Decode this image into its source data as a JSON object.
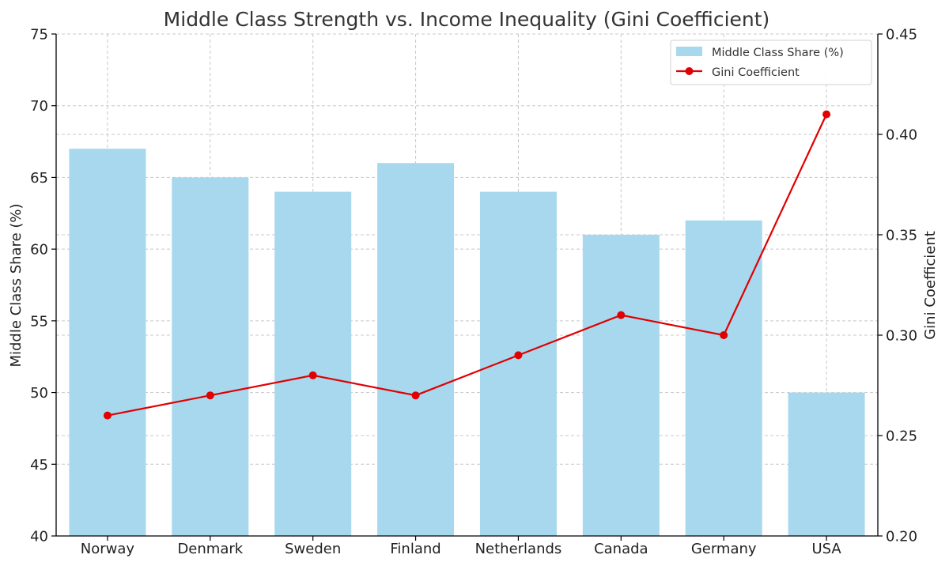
{
  "chart_data": {
    "type": "bar",
    "title": "Middle Class Strength vs. Income Inequality (Gini Coefficient)",
    "categories": [
      "Norway",
      "Denmark",
      "Sweden",
      "Finland",
      "Netherlands",
      "Canada",
      "Germany",
      "USA"
    ],
    "series": [
      {
        "name": "Middle Class Share (%)",
        "type": "bar",
        "axis": "left",
        "color": "#a8d8ed",
        "values": [
          67,
          65,
          64,
          66,
          64,
          61,
          62,
          50
        ]
      },
      {
        "name": "Gini Coefficient",
        "type": "line",
        "axis": "right",
        "color": "#e00000",
        "marker": "circle",
        "values": [
          0.26,
          0.27,
          0.28,
          0.27,
          0.29,
          0.31,
          0.3,
          0.41
        ]
      }
    ],
    "left_axis": {
      "label": "Middle Class Share (%)",
      "range": [
        40,
        75
      ],
      "ticks": [
        "40",
        "45",
        "50",
        "55",
        "60",
        "65",
        "70",
        "75"
      ]
    },
    "right_axis": {
      "label": "Gini Coefficient",
      "range": [
        0.2,
        0.45
      ],
      "ticks": [
        "0.20",
        "0.25",
        "0.30",
        "0.35",
        "0.40",
        "0.45"
      ]
    },
    "grid": true,
    "legend_position": "top-right"
  }
}
